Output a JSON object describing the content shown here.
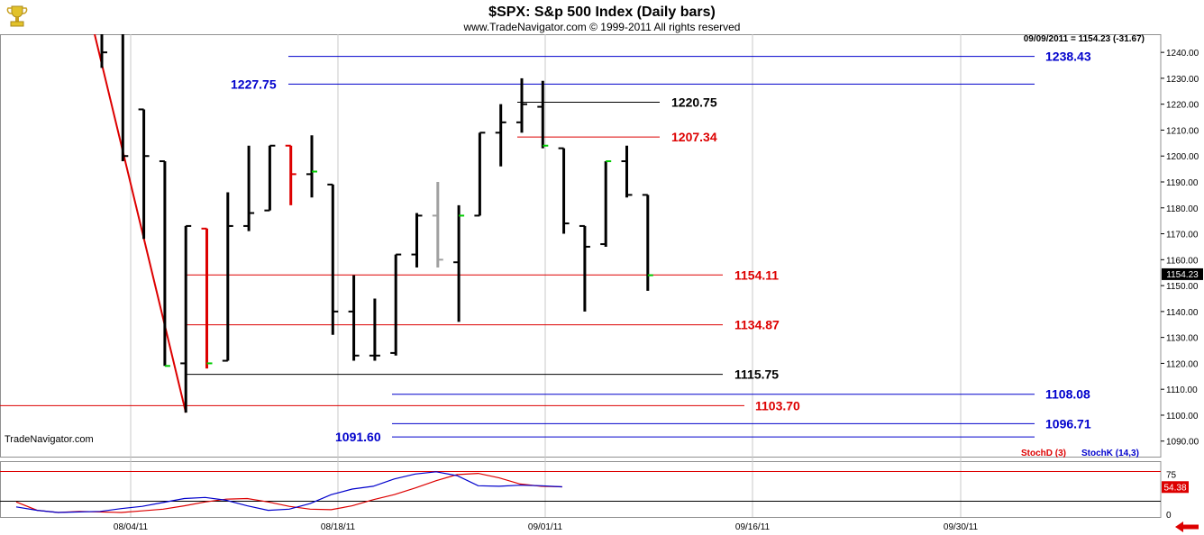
{
  "header": {
    "title": "$SPX:  S&p 500 Index  (Daily bars)",
    "subtitle": "www.TradeNavigator.com © 1999-2011 All rights reserved"
  },
  "price_readout": "09/09/2011 = 1154.23 (-31.67)",
  "watermark": "TradeNavigator.com",
  "last_price_label": "1154.23",
  "stoch_value_label": "54.38",
  "logo_icon": "trophy-icon",
  "nav_arrow_icon": "left-arrow-icon",
  "colors": {
    "background": "#ffffff",
    "bar_up": "#000000",
    "bar_down_red": "#ff0000",
    "neutral_gray": "#a0a0a0",
    "green_tick": "#00cc00",
    "level_blue": "#0000cc",
    "level_red": "#dd0000",
    "level_black": "#000000",
    "grid": "#c8c8c8",
    "stoch_d": "#dd0000",
    "stoch_k": "#0000cc",
    "stoch_badge": "#dd0000"
  },
  "chart_data": [
    {
      "type": "ohlc",
      "title": "$SPX:  S&p 500 Index  (Daily bars)",
      "x_axis_labels": [
        "08/04/11",
        "08/18/11",
        "09/01/11",
        "09/16/11",
        "09/30/11"
      ],
      "y_ticks": [
        1090,
        1100,
        1110,
        1120,
        1130,
        1140,
        1150,
        1160,
        1170,
        1180,
        1190,
        1200,
        1210,
        1220,
        1230,
        1240
      ],
      "ylim": [
        1084,
        1247
      ],
      "bars": [
        {
          "o": 1260,
          "h": 1262,
          "l": 1234,
          "c": 1240,
          "color": "black"
        },
        {
          "o": 1255,
          "h": 1258,
          "l": 1198,
          "c": 1200,
          "color": "black"
        },
        {
          "o": 1218,
          "h": 1218,
          "l": 1168,
          "c": 1200,
          "color": "black"
        },
        {
          "o": 1198,
          "h": 1198,
          "l": 1119,
          "c": 1119,
          "color": "black",
          "close_tick": "green"
        },
        {
          "o": 1120,
          "h": 1173,
          "l": 1101,
          "c": 1173,
          "color": "black"
        },
        {
          "o": 1172,
          "h": 1172,
          "l": 1118,
          "c": 1120,
          "color": "red",
          "close_tick": "green"
        },
        {
          "o": 1121,
          "h": 1186,
          "l": 1121,
          "c": 1173,
          "color": "black"
        },
        {
          "o": 1173,
          "h": 1204,
          "l": 1171,
          "c": 1178,
          "color": "black"
        },
        {
          "o": 1179,
          "h": 1204,
          "l": 1179,
          "c": 1204,
          "color": "black"
        },
        {
          "o": 1204,
          "h": 1204,
          "l": 1181,
          "c": 1193,
          "color": "red"
        },
        {
          "o": 1193,
          "h": 1208,
          "l": 1184,
          "c": 1194,
          "color": "black",
          "close_tick": "green"
        },
        {
          "o": 1189,
          "h": 1189,
          "l": 1131,
          "c": 1140,
          "color": "black"
        },
        {
          "o": 1140,
          "h": 1154,
          "l": 1121,
          "c": 1123,
          "color": "black"
        },
        {
          "o": 1123,
          "h": 1145,
          "l": 1121,
          "c": 1123,
          "color": "black"
        },
        {
          "o": 1124,
          "h": 1162,
          "l": 1123,
          "c": 1162,
          "color": "black"
        },
        {
          "o": 1162,
          "h": 1178,
          "l": 1157,
          "c": 1177,
          "color": "black"
        },
        {
          "o": 1177,
          "h": 1190,
          "l": 1157,
          "c": 1160,
          "color": "gray"
        },
        {
          "o": 1159,
          "h": 1181,
          "l": 1136,
          "c": 1177,
          "color": "black",
          "close_tick": "green"
        },
        {
          "o": 1177,
          "h": 1209,
          "l": 1177,
          "c": 1209,
          "color": "black"
        },
        {
          "o": 1209,
          "h": 1220,
          "l": 1196,
          "c": 1213,
          "color": "black"
        },
        {
          "o": 1213,
          "h": 1230,
          "l": 1209,
          "c": 1220,
          "color": "black"
        },
        {
          "o": 1219,
          "h": 1229,
          "l": 1203,
          "c": 1204,
          "color": "black",
          "close_tick": "green"
        },
        {
          "o": 1203,
          "h": 1203,
          "l": 1170,
          "c": 1174,
          "color": "black"
        },
        {
          "o": 1173,
          "h": 1173,
          "l": 1140,
          "c": 1165,
          "color": "black"
        },
        {
          "o": 1166,
          "h": 1198,
          "l": 1165,
          "c": 1198,
          "color": "black",
          "close_tick": "green"
        },
        {
          "o": 1198,
          "h": 1204,
          "l": 1184,
          "c": 1185,
          "color": "black"
        },
        {
          "o": 1185,
          "h": 1185,
          "l": 1148,
          "c": 1154,
          "color": "black",
          "close_tick": "green"
        }
      ],
      "levels": [
        {
          "value": 1238.43,
          "label": "1238.43",
          "color": "blue",
          "label_side": "right"
        },
        {
          "value": 1227.75,
          "label": "1227.75",
          "color": "blue",
          "label_side": "left"
        },
        {
          "value": 1220.75,
          "label": "1220.75",
          "color": "black",
          "label_side": "right"
        },
        {
          "value": 1207.34,
          "label": "1207.34",
          "color": "red",
          "label_side": "right"
        },
        {
          "value": 1154.11,
          "label": "1154.11",
          "color": "red",
          "label_side": "right"
        },
        {
          "value": 1134.87,
          "label": "1134.87",
          "color": "red",
          "label_side": "right"
        },
        {
          "value": 1115.75,
          "label": "1115.75",
          "color": "black",
          "label_side": "right"
        },
        {
          "value": 1108.08,
          "label": "1108.08",
          "color": "blue",
          "label_side": "right"
        },
        {
          "value": 1103.7,
          "label": "1103.70",
          "color": "red",
          "label_side": "right"
        },
        {
          "value": 1096.71,
          "label": "1096.71",
          "color": "blue",
          "label_side": "right"
        },
        {
          "value": 1091.6,
          "label": "1091.60",
          "color": "blue",
          "label_side": "left"
        }
      ],
      "trendline": {
        "from": [
          0,
          1247
        ],
        "to": [
          4,
          1101
        ]
      }
    },
    {
      "type": "line",
      "title": "",
      "legend": [
        "StochD (3)",
        "StochK (14,3)"
      ],
      "y_ticks": [
        0,
        75
      ],
      "ylim": [
        0,
        100
      ],
      "series": [
        {
          "name": "StochD (3)",
          "color": "red",
          "values": [
            27,
            12,
            8,
            10,
            9,
            8,
            11,
            14,
            20,
            27,
            32,
            33,
            27,
            19,
            14,
            13,
            20,
            31,
            40,
            52,
            65,
            76,
            78,
            70,
            59,
            55,
            54
          ]
        },
        {
          "name": "StochK (14,3)",
          "color": "blue",
          "values": [
            18,
            12,
            8,
            9,
            10,
            15,
            19,
            26,
            33,
            35,
            30,
            20,
            12,
            14,
            24,
            40,
            50,
            55,
            68,
            77,
            81,
            74,
            56,
            55,
            57,
            56,
            54
          ]
        }
      ]
    }
  ]
}
